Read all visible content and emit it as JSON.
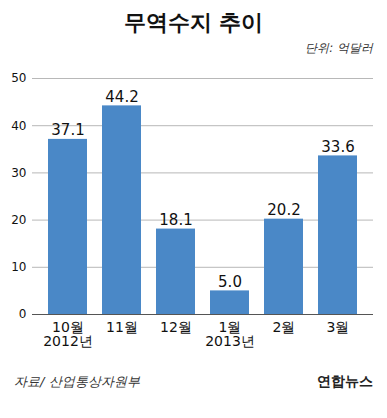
{
  "chart_data": {
    "type": "bar",
    "title": "무역수지 추이",
    "subtitle": "단위: 억달러",
    "categories": [
      "10월",
      "11월",
      "12월",
      "1월",
      "2월",
      "3월"
    ],
    "x_groups": [
      {
        "label": "2012년",
        "categories": [
          "10월",
          "11월",
          "12월"
        ]
      },
      {
        "label": "2013년",
        "categories": [
          "1월",
          "2월",
          "3월"
        ]
      }
    ],
    "values": [
      37.1,
      44.2,
      18.1,
      5.0,
      20.2,
      33.6
    ],
    "value_labels": [
      "37.1",
      "44.2",
      "18.1",
      "5.0",
      "20.2",
      "33.6"
    ],
    "color": "#4a88c7",
    "ylim": [
      0,
      50
    ],
    "yticks": [
      0,
      10,
      20,
      30,
      40,
      50
    ],
    "grid": true,
    "data_labels": true,
    "source": "자료/ 산업통상자원부",
    "credit": "연합뉴스"
  }
}
